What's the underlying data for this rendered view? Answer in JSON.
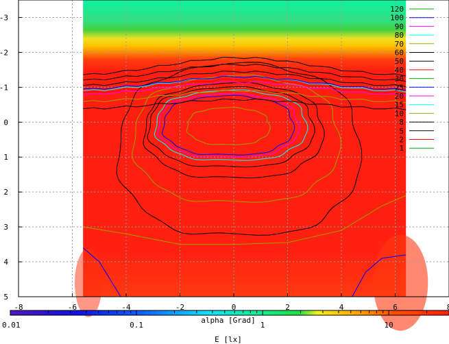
{
  "chart_data": {
    "type": "heatmap",
    "title": "",
    "xlabel": "alpha [Grad]",
    "ylabel": "",
    "xlim": [
      -8,
      8
    ],
    "ylim": [
      5,
      -3.5
    ],
    "xticks": [
      "-8",
      "-6",
      "-4",
      "-2",
      "0",
      "2",
      "4",
      "6",
      "8"
    ],
    "yticks": [
      "-3",
      "-2",
      "-1",
      "0",
      "1",
      "2",
      "3",
      "4",
      "5"
    ],
    "grid": true,
    "data_extent_x": [
      -5.6,
      6.4
    ],
    "legend_position": "top-right",
    "contour_levels": [
      {
        "label": "120",
        "value": 120,
        "color": "#00b000"
      },
      {
        "label": "100",
        "value": 100,
        "color": "#0000ff"
      },
      {
        "label": "90",
        "value": 90,
        "color": "#ff00ff"
      },
      {
        "label": "80",
        "value": 80,
        "color": "#00ffff"
      },
      {
        "label": "70",
        "value": 70,
        "color": "#a0a000"
      },
      {
        "label": "60",
        "value": 60,
        "color": "#000000"
      },
      {
        "label": "50",
        "value": 50,
        "color": "#000000"
      },
      {
        "label": "40",
        "value": 40,
        "color": "#ff0000"
      },
      {
        "label": "30",
        "value": 30,
        "color": "#00b000"
      },
      {
        "label": "25",
        "value": 25,
        "color": "#0000ff"
      },
      {
        "label": "20",
        "value": 20,
        "color": "#ff00ff"
      },
      {
        "label": "15",
        "value": 15,
        "color": "#00ffff"
      },
      {
        "label": "10",
        "value": 10,
        "color": "#a0a000"
      },
      {
        "label": "8",
        "value": 8,
        "color": "#000000"
      },
      {
        "label": "5",
        "value": 5,
        "color": "#000000"
      },
      {
        "label": "2",
        "value": 2,
        "color": "#ff0000"
      },
      {
        "label": "1",
        "value": 1,
        "color": "#00b000"
      }
    ],
    "colorbar": {
      "label": "E [lx]",
      "scale": "log",
      "range": [
        0.01,
        30
      ],
      "ticks": [
        "0.01",
        "0.1",
        "1",
        "10"
      ],
      "tick_values": [
        0.01,
        0.1,
        1,
        10
      ]
    }
  }
}
